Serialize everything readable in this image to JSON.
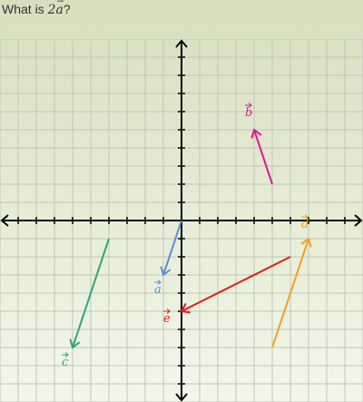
{
  "question": {
    "prefix": "What is ",
    "coefficient": "2",
    "vector": "a",
    "suffix": "?"
  },
  "chart_data": {
    "type": "vector-plot",
    "xlim": [
      -10,
      10
    ],
    "ylim": [
      -10,
      10
    ],
    "grid": true,
    "vectors": [
      {
        "name": "a",
        "label": "a",
        "tail": [
          0,
          0
        ],
        "head": [
          -1,
          -3
        ],
        "color": "#5b8dd9"
      },
      {
        "name": "b",
        "label": "b",
        "tail": [
          5,
          2
        ],
        "head": [
          4,
          5
        ],
        "color": "#e0198c"
      },
      {
        "name": "c",
        "label": "c",
        "tail": [
          -4,
          -1
        ],
        "head": [
          -6,
          -7
        ],
        "color": "#2fa57a"
      },
      {
        "name": "d",
        "label": "d",
        "tail": [
          5,
          -7
        ],
        "head": [
          7,
          -1
        ],
        "color": "#f3a21f"
      },
      {
        "name": "e",
        "label": "e",
        "tail": [
          6,
          -2
        ],
        "head": [
          0,
          -5
        ],
        "color": "#e01b1b"
      }
    ]
  }
}
